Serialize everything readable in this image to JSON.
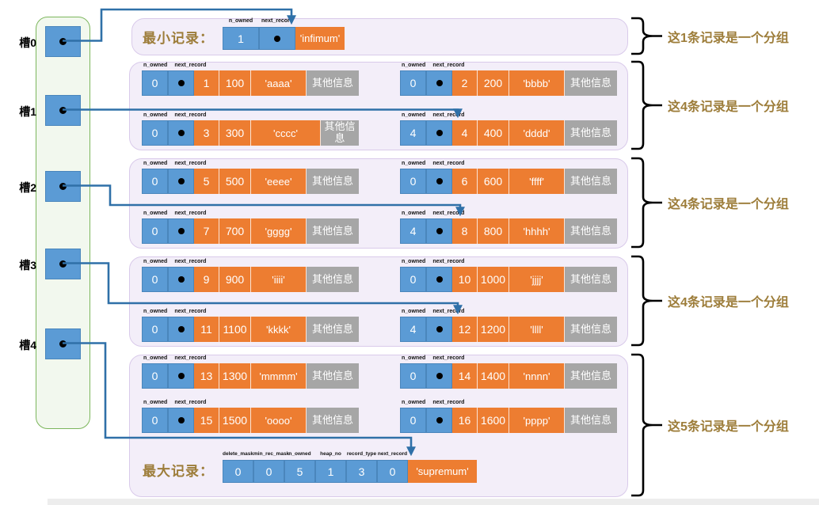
{
  "slots": [
    "槽0",
    "槽1",
    "槽2",
    "槽3",
    "槽4"
  ],
  "record_headers": [
    "n_owned",
    "next_record"
  ],
  "infimum": {
    "caption": "最小记录：",
    "headers": [
      "n_owned",
      "next_record"
    ],
    "n_owned": "1",
    "value": "'infimum'"
  },
  "supremum": {
    "caption": "最大记录：",
    "headers": [
      "delete_mask",
      "min_rec_mask",
      "n_owned",
      "heap_no",
      "record_type",
      "next_record"
    ],
    "values": [
      "0",
      "0",
      "5",
      "1",
      "3",
      "0"
    ],
    "value": "'supremum'"
  },
  "groups": [
    {
      "brace_label": "这1条记录是一个分组",
      "records": []
    },
    {
      "brace_label": "这4条记录是一个分组",
      "records": [
        {
          "n_owned": "0",
          "key": "1",
          "value": "100",
          "data": "'aaaa'",
          "other": "其他信息"
        },
        {
          "n_owned": "0",
          "key": "2",
          "value": "200",
          "data": "'bbbb'",
          "other": "其他信息"
        },
        {
          "n_owned": "0",
          "key": "3",
          "value": "300",
          "data": "'cccc'",
          "other": "其他信息",
          "wrap": true
        },
        {
          "n_owned": "4",
          "key": "4",
          "value": "400",
          "data": "'dddd'",
          "other": "其他信息"
        }
      ]
    },
    {
      "brace_label": "这4条记录是一个分组",
      "records": [
        {
          "n_owned": "0",
          "key": "5",
          "value": "500",
          "data": "'eeee'",
          "other": "其他信息"
        },
        {
          "n_owned": "0",
          "key": "6",
          "value": "600",
          "data": "'ffff'",
          "other": "其他信息"
        },
        {
          "n_owned": "0",
          "key": "7",
          "value": "700",
          "data": "'gggg'",
          "other": "其他信息"
        },
        {
          "n_owned": "4",
          "key": "8",
          "value": "800",
          "data": "'hhhh'",
          "other": "其他信息"
        }
      ]
    },
    {
      "brace_label": "这4条记录是一个分组",
      "records": [
        {
          "n_owned": "0",
          "key": "9",
          "value": "900",
          "data": "'iiii'",
          "other": "其他信息"
        },
        {
          "n_owned": "0",
          "key": "10",
          "value": "1000",
          "data": "'jjjj'",
          "other": "其他信息"
        },
        {
          "n_owned": "0",
          "key": "11",
          "value": "1100",
          "data": "'kkkk'",
          "other": "其他信息"
        },
        {
          "n_owned": "4",
          "key": "12",
          "value": "1200",
          "data": "'llll'",
          "other": "其他信息"
        }
      ]
    },
    {
      "brace_label": "这5条记录是一个分组",
      "records": [
        {
          "n_owned": "0",
          "key": "13",
          "value": "1300",
          "data": "'mmmm'",
          "other": "其他信息"
        },
        {
          "n_owned": "0",
          "key": "14",
          "value": "1400",
          "data": "'nnnn'",
          "other": "其他信息"
        },
        {
          "n_owned": "0",
          "key": "15",
          "value": "1500",
          "data": "'oooo'",
          "other": "其他信息"
        },
        {
          "n_owned": "0",
          "key": "16",
          "value": "1600",
          "data": "'pppp'",
          "other": "其他信息"
        }
      ]
    }
  ],
  "colors": {
    "cell_blue": "#5b9bd5",
    "cell_orange": "#ed7d31",
    "cell_gray": "#a6a6a6",
    "arrow_blue": "#2f70a8",
    "label_gold": "#9d7d3a",
    "panel_green_border": "#7cb65c",
    "group_purple_border": "#d9caea"
  }
}
